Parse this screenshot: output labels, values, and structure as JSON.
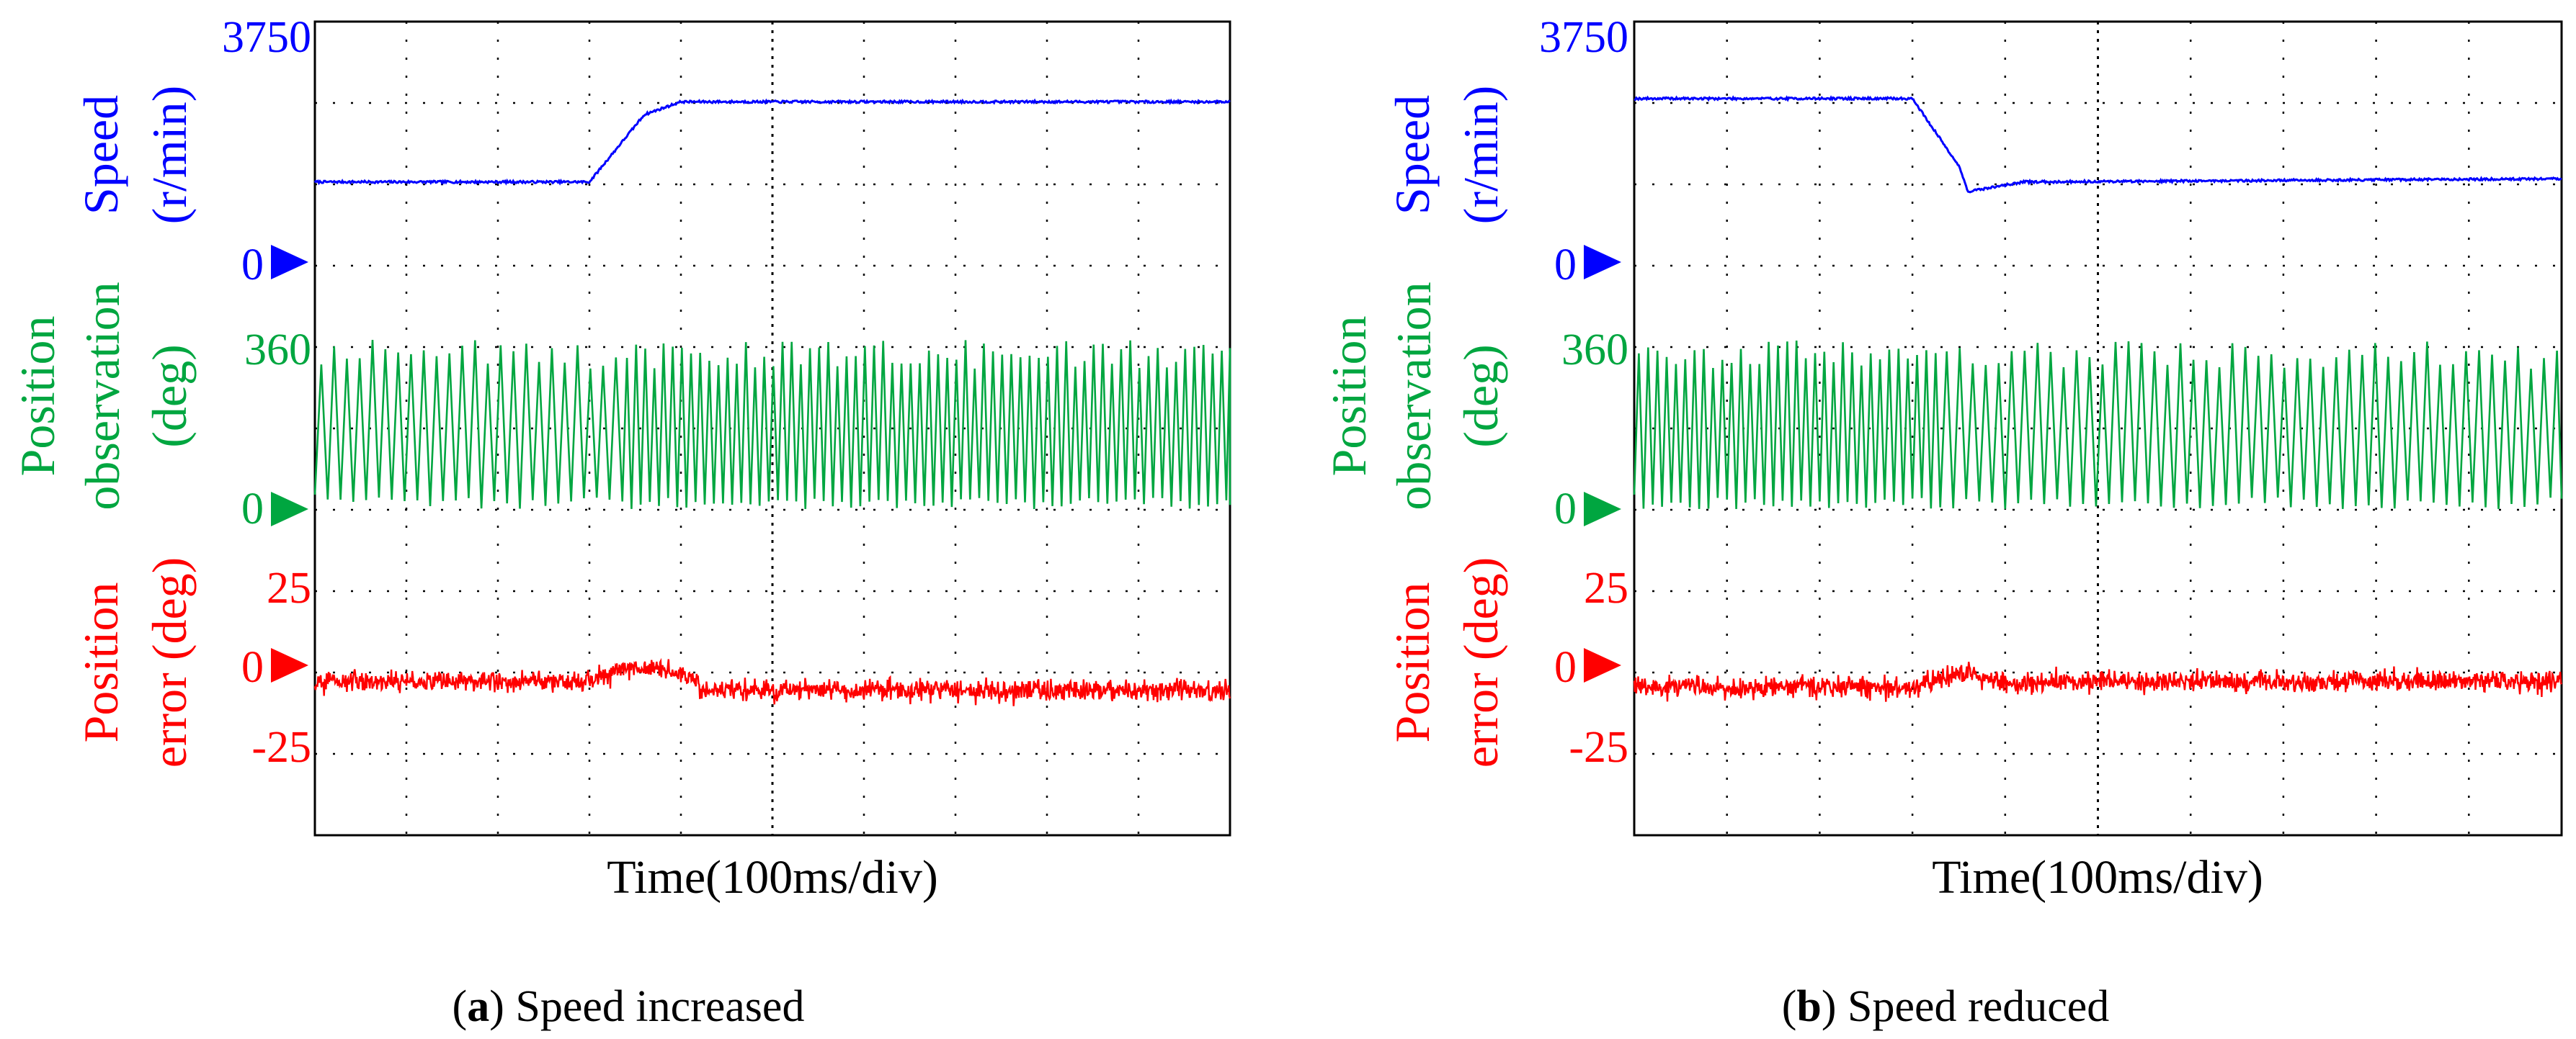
{
  "figure": {
    "x_axis_label": "Time(100ms/div)",
    "colors": {
      "speed": "#0000ff",
      "position": "#00a640",
      "error": "#ff0000",
      "grid": "#000000"
    }
  },
  "chart_data": [
    {
      "type": "line",
      "panel_tag": "(a)",
      "caption": "Speed increased",
      "xlabel": "Time(100ms/div)",
      "x_divisions": 10,
      "y_divisions": 10,
      "grid": true,
      "traces": {
        "speed": {
          "label_line1": "Speed",
          "label_line2": "(r/min)",
          "top_label": "3750",
          "zero_label": "0",
          "ylim": [
            0,
            3750
          ],
          "segments": [
            {
              "t_ms": 0,
              "value": 1250
            },
            {
              "t_ms": 300,
              "value": 1250
            },
            {
              "t_ms": 360,
              "value": 2300
            },
            {
              "t_ms": 400,
              "value": 2500
            },
            {
              "t_ms": 1000,
              "value": 2500
            }
          ]
        },
        "position": {
          "label_line1": "Position",
          "label_line2": "observation",
          "label_line3": "(deg)",
          "top_label": "360",
          "zero_label": "0",
          "ylim": [
            0,
            360
          ],
          "electrical_period_ms": [
            14,
            10
          ]
        },
        "error": {
          "label_line1": "Position",
          "label_line2": "error (deg)",
          "pos_label": "25",
          "zero_label": "0",
          "neg_label": "-25",
          "ylim": [
            -50,
            50
          ],
          "mean_before_deg": -5,
          "mean_after_deg": -8,
          "band_deg": 6
        }
      }
    },
    {
      "type": "line",
      "panel_tag": "(b)",
      "caption": "Speed reduced",
      "xlabel": "Time(100ms/div)",
      "x_divisions": 10,
      "y_divisions": 10,
      "grid": true,
      "traces": {
        "speed": {
          "label_line1": "Speed",
          "label_line2": "(r/min)",
          "top_label": "3750",
          "zero_label": "0",
          "ylim": [
            0,
            3750
          ],
          "segments": [
            {
              "t_ms": 0,
              "value": 2550
            },
            {
              "t_ms": 300,
              "value": 2550
            },
            {
              "t_ms": 350,
              "value": 1500
            },
            {
              "t_ms": 360,
              "value": 1100
            },
            {
              "t_ms": 420,
              "value": 1250
            },
            {
              "t_ms": 1000,
              "value": 1300
            }
          ]
        },
        "position": {
          "label_line1": "Position",
          "label_line2": "observation",
          "label_line3": "(deg)",
          "top_label": "360",
          "zero_label": "0",
          "ylim": [
            0,
            360
          ],
          "electrical_period_ms": [
            10,
            14
          ]
        },
        "error": {
          "label_line1": "Position",
          "label_line2": "error (deg)",
          "pos_label": "25",
          "zero_label": "0",
          "neg_label": "-25",
          "ylim": [
            -50,
            50
          ],
          "mean_before_deg": -7,
          "mean_after_deg": -5,
          "band_deg": 6
        }
      }
    }
  ]
}
